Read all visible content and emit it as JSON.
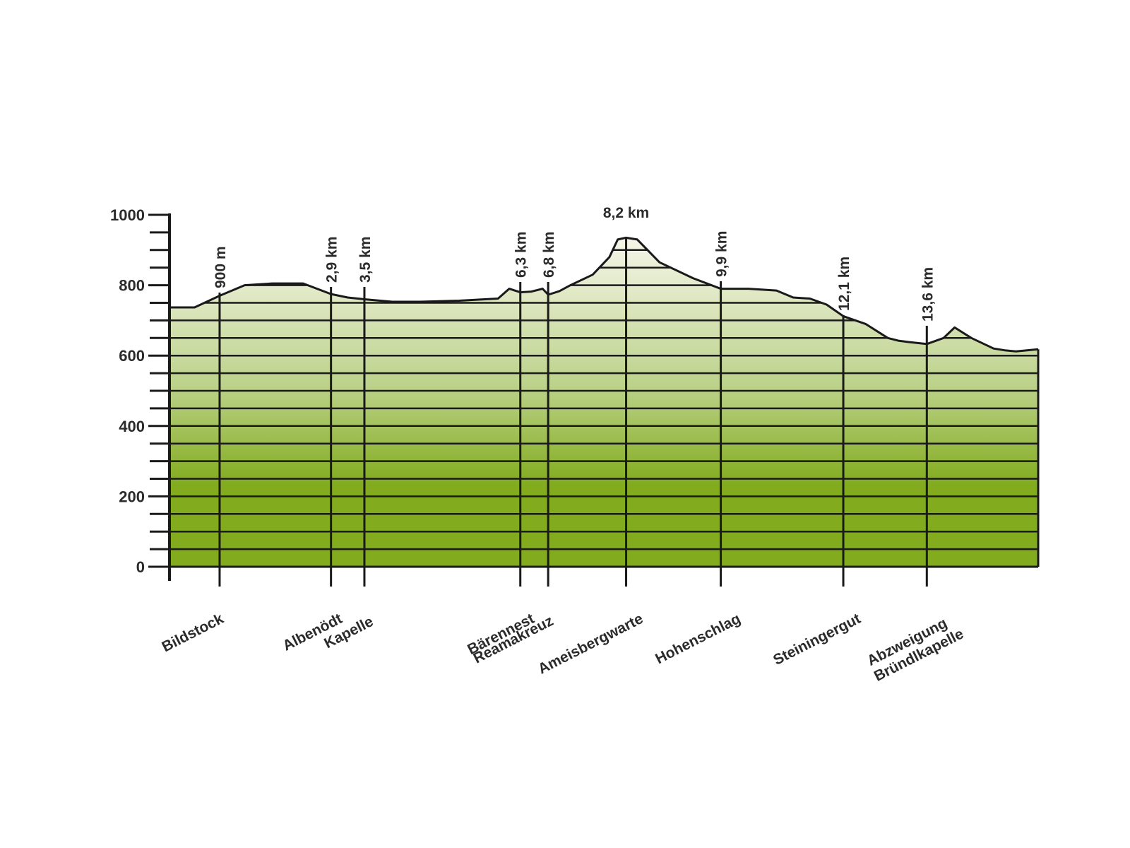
{
  "chart_data": {
    "type": "area",
    "title": "",
    "xlabel": "",
    "ylabel": "",
    "x_unit": "km",
    "y_unit": "m",
    "xlim": [
      0,
      15.6
    ],
    "ylim": [
      0,
      1000
    ],
    "y_ticks": [
      0,
      200,
      400,
      600,
      800,
      1000
    ],
    "y_tick_labels": [
      "0",
      "200",
      "400",
      "600",
      "800",
      "1000"
    ],
    "y_minor_step": 50,
    "grid": true,
    "colors": {
      "fill_top": "#f6f6ea",
      "fill_mid": "#bcd28a",
      "fill_bottom": "#82ac1e",
      "line": "#1a1a1a",
      "text": "#2b2b2b"
    },
    "profile": {
      "x": [
        0,
        0.45,
        0.9,
        1.35,
        1.85,
        2.4,
        2.9,
        3.2,
        3.5,
        4.0,
        4.5,
        5.2,
        5.9,
        6.1,
        6.3,
        6.5,
        6.7,
        6.8,
        7.0,
        7.2,
        7.6,
        7.9,
        8.05,
        8.2,
        8.4,
        8.8,
        9.4,
        9.9,
        10.4,
        10.9,
        11.2,
        11.5,
        11.8,
        12.1,
        12.5,
        12.9,
        13.1,
        13.3,
        13.6,
        13.9,
        14.1,
        14.4,
        14.8,
        15.0,
        15.2,
        15.6
      ],
      "y": [
        737,
        737,
        770,
        800,
        805,
        805,
        775,
        765,
        760,
        753,
        753,
        756,
        762,
        790,
        780,
        782,
        790,
        773,
        783,
        800,
        830,
        880,
        930,
        935,
        930,
        865,
        820,
        790,
        790,
        785,
        765,
        762,
        745,
        712,
        690,
        650,
        642,
        638,
        633,
        650,
        680,
        650,
        620,
        615,
        612,
        618
      ]
    },
    "markers": [
      {
        "x": 0.9,
        "km_label": "900 m",
        "name": "Bildstock"
      },
      {
        "x": 2.9,
        "km_label": "2,9 km",
        "name": "Albenödt"
      },
      {
        "x": 3.5,
        "km_label": "3,5 km",
        "name": "Kapelle"
      },
      {
        "x": 6.3,
        "km_label": "6,3 km",
        "name": "Bärennest"
      },
      {
        "x": 6.8,
        "km_label": "6,8 km",
        "name": "Reamakreuz"
      },
      {
        "x": 8.2,
        "km_label": "8,2 km",
        "name": "Ameisbergwarte"
      },
      {
        "x": 9.9,
        "km_label": "9,9 km",
        "name": "Hohenschlag"
      },
      {
        "x": 12.1,
        "km_label": "12,1 km",
        "name": "Steiningergut"
      },
      {
        "x": 13.6,
        "km_label": "13,6 km",
        "name": "Abzweigung Bründlkapelle"
      }
    ]
  }
}
